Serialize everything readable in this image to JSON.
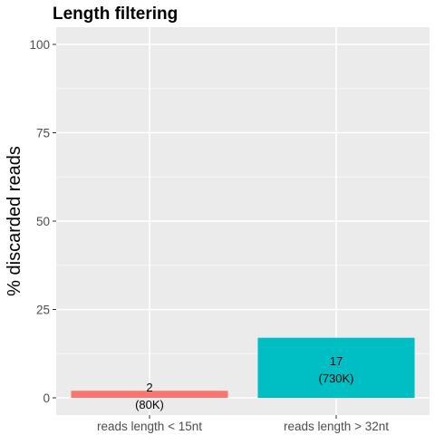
{
  "chart_data": {
    "type": "bar",
    "title": "Length filtering",
    "xlabel": "",
    "ylabel": "% discarded reads",
    "ylim": [
      0,
      104
    ],
    "yticks": [
      0,
      25,
      50,
      75,
      100
    ],
    "categories": [
      "reads length < 15nt",
      "reads length > 32nt"
    ],
    "values": [
      2,
      17
    ],
    "value_labels": [
      "2",
      "17"
    ],
    "count_labels": [
      "(80K)",
      "(730K)"
    ],
    "colors": [
      "#f8766d",
      "#00bfc4"
    ],
    "panel_background": "#ebebeb",
    "grid": true,
    "legend": "none"
  }
}
